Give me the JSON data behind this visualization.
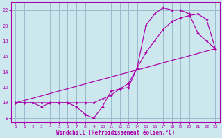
{
  "xlabel": "Windchill (Refroidissement éolien,°C)",
  "xlim": [
    -0.5,
    23.5
  ],
  "ylim": [
    7.5,
    23.0
  ],
  "xticks": [
    0,
    1,
    2,
    3,
    4,
    5,
    6,
    7,
    8,
    9,
    10,
    11,
    12,
    13,
    14,
    15,
    16,
    17,
    18,
    19,
    20,
    21,
    22,
    23
  ],
  "yticks": [
    8,
    10,
    12,
    14,
    16,
    18,
    20,
    22
  ],
  "bg_color": "#cce8ee",
  "line_color": "#aa00aa",
  "grid_color": "#99bbcc",
  "line1_x": [
    0,
    1,
    2,
    3,
    4,
    5,
    6,
    7,
    8,
    9,
    10,
    11,
    12,
    13,
    14,
    15,
    16,
    17,
    18,
    19,
    20,
    21,
    22,
    23
  ],
  "line1_y": [
    10.0,
    10.0,
    10.0,
    10.0,
    10.0,
    10.0,
    10.0,
    9.5,
    8.5,
    8.0,
    9.5,
    11.5,
    11.8,
    12.0,
    14.5,
    20.0,
    21.5,
    22.3,
    22.0,
    22.0,
    21.5,
    19.0,
    18.0,
    17.0
  ],
  "line2_x": [
    0,
    1,
    2,
    3,
    4,
    5,
    6,
    7,
    8,
    9,
    10,
    11,
    12,
    13,
    14,
    15,
    16,
    17,
    18,
    19,
    20,
    21,
    22,
    23
  ],
  "line2_y": [
    10.0,
    10.0,
    10.0,
    9.5,
    10.0,
    10.0,
    10.0,
    10.0,
    10.0,
    10.0,
    10.5,
    11.0,
    11.8,
    12.5,
    14.5,
    16.5,
    18.0,
    19.5,
    20.5,
    21.0,
    21.3,
    21.5,
    20.8,
    17.0
  ],
  "line3_x": [
    0,
    23
  ],
  "line3_y": [
    10.0,
    17.0
  ]
}
